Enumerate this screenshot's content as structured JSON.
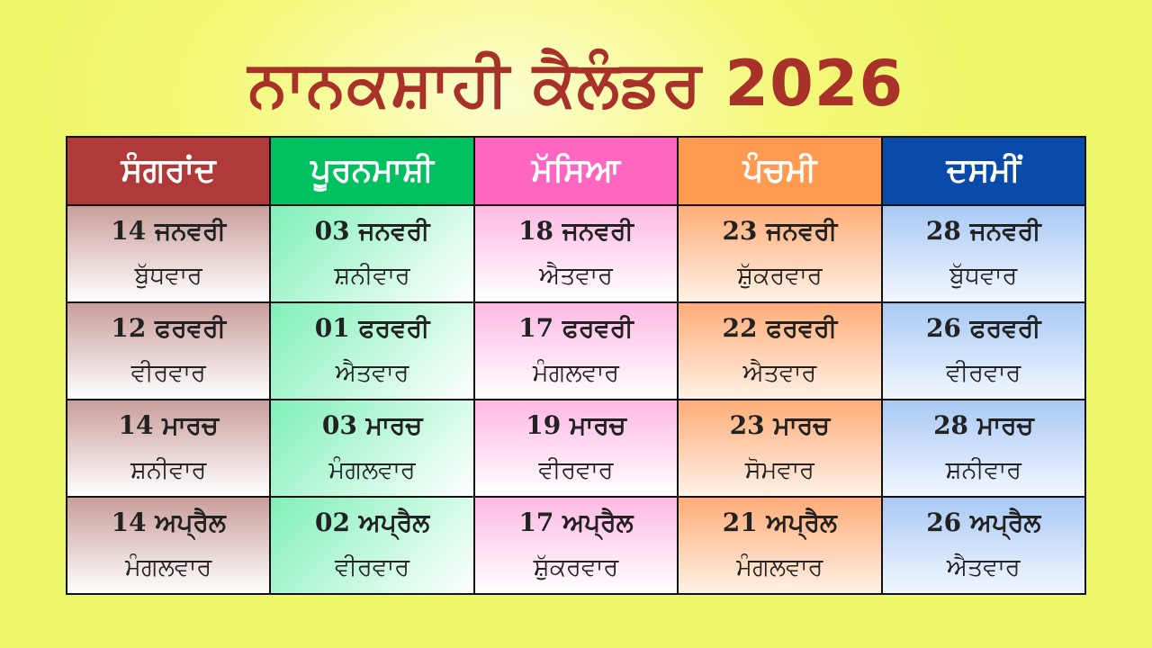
{
  "title": "ਨਾਨਕਸ਼ਾਹੀ ਕੈਲੰਡਰ 2026",
  "colors": {
    "title": "#a8322a",
    "background": "#f4f87a",
    "headers": [
      "#b03a3a",
      "#00c060",
      "#ff66c0",
      "#ff9a50",
      "#0a4aa8"
    ]
  },
  "table": {
    "headers": [
      "ਸੰਗਰਾਂਦ",
      "ਪੂਰਨਮਾਸ਼ੀ",
      "ਮੱਸਿਆ",
      "ਪੰਚਮੀ",
      "ਦਸਮੀਂ"
    ],
    "rows": [
      [
        {
          "date": "14 ਜਨਵਰੀ",
          "day": "ਬੁੱਧਵਾਰ"
        },
        {
          "date": "03 ਜਨਵਰੀ",
          "day": "ਸ਼ਨੀਵਾਰ"
        },
        {
          "date": "18 ਜਨਵਰੀ",
          "day": "ਐਤਵਾਰ"
        },
        {
          "date": "23 ਜਨਵਰੀ",
          "day": "ਸ਼ੁੱਕਰਵਾਰ"
        },
        {
          "date": "28 ਜਨਵਰੀ",
          "day": "ਬੁੱਧਵਾਰ"
        }
      ],
      [
        {
          "date": "12 ਫਰਵਰੀ",
          "day": "ਵੀਰਵਾਰ"
        },
        {
          "date": "01 ਫਰਵਰੀ",
          "day": "ਐਤਵਾਰ"
        },
        {
          "date": "17 ਫਰਵਰੀ",
          "day": "ਮੰਗਲਵਾਰ"
        },
        {
          "date": "22 ਫਰਵਰੀ",
          "day": "ਐਤਵਾਰ"
        },
        {
          "date": "26 ਫਰਵਰੀ",
          "day": "ਵੀਰਵਾਰ"
        }
      ],
      [
        {
          "date": "14 ਮਾਰਚ",
          "day": "ਸ਼ਨੀਵਾਰ"
        },
        {
          "date": "03 ਮਾਰਚ",
          "day": "ਮੰਗਲਵਾਰ"
        },
        {
          "date": "19 ਮਾਰਚ",
          "day": "ਵੀਰਵਾਰ"
        },
        {
          "date": "23 ਮਾਰਚ",
          "day": "ਸੋਮਵਾਰ"
        },
        {
          "date": "28 ਮਾਰਚ",
          "day": "ਸ਼ਨੀਵਾਰ"
        }
      ],
      [
        {
          "date": "14 ਅਪ੍ਰੈਲ",
          "day": "ਮੰਗਲਵਾਰ"
        },
        {
          "date": "02 ਅਪ੍ਰੈਲ",
          "day": "ਵੀਰਵਾਰ"
        },
        {
          "date": "17 ਅਪ੍ਰੈਲ",
          "day": "ਸ਼ੁੱਕਰਵਾਰ"
        },
        {
          "date": "21 ਅਪ੍ਰੈਲ",
          "day": "ਮੰਗਲਵਾਰ"
        },
        {
          "date": "26 ਅਪ੍ਰੈਲ",
          "day": "ਐਤਵਾਰ"
        }
      ]
    ]
  }
}
